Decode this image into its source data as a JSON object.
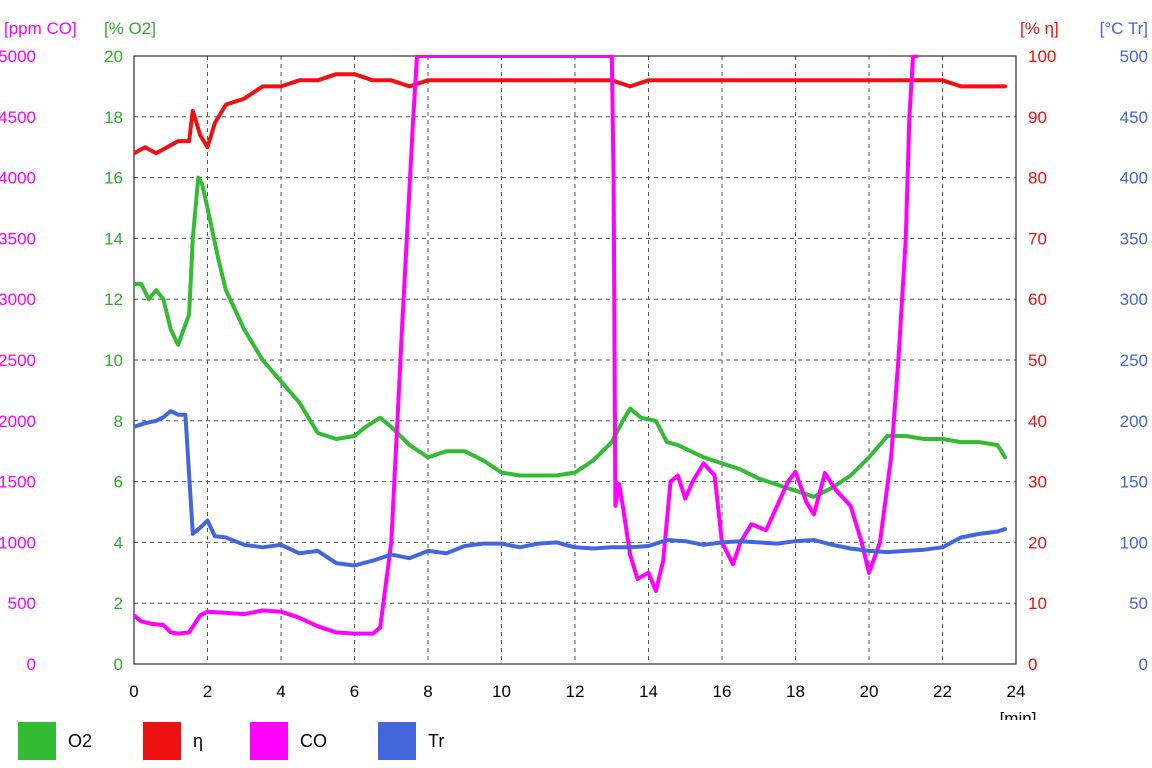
{
  "chart_data": {
    "type": "line",
    "xlabel": "[min]",
    "x_ticks": [
      "0",
      "2",
      "4",
      "6",
      "8",
      "10",
      "12",
      "14",
      "16",
      "18",
      "20",
      "22",
      "24"
    ],
    "xlim": [
      0,
      24
    ],
    "grid": true,
    "legend_position": "bottom",
    "axes": [
      {
        "key": "co",
        "label": "[ppm CO]",
        "side": "left",
        "range": [
          0,
          5000
        ],
        "ticks": [
          "0",
          "500",
          "1000",
          "1500",
          "2000",
          "2500",
          "3000",
          "3500",
          "4000",
          "4500",
          "5000"
        ],
        "color": "#ff00ff"
      },
      {
        "key": "o2",
        "label": "[% O2]",
        "side": "left",
        "range": [
          0,
          20
        ],
        "ticks": [
          "0",
          "2",
          "4",
          "6",
          "8",
          "10",
          "12",
          "14",
          "16",
          "18",
          "20"
        ],
        "color": "#33aa33"
      },
      {
        "key": "eta",
        "label": "[% η]",
        "side": "right",
        "range": [
          0,
          100
        ],
        "ticks": [
          "0",
          "10",
          "20",
          "30",
          "40",
          "50",
          "60",
          "70",
          "80",
          "90",
          "100"
        ],
        "color": "#ee1111"
      },
      {
        "key": "tr",
        "label": "[°C Tr]",
        "side": "right",
        "range": [
          0,
          500
        ],
        "ticks": [
          "0",
          "50",
          "100",
          "150",
          "200",
          "250",
          "300",
          "350",
          "400",
          "450",
          "500"
        ],
        "color": "#4466dd"
      }
    ],
    "series": [
      {
        "name": "O2",
        "axis": "o2",
        "color": "#33bb33",
        "x": [
          0,
          0.2,
          0.4,
          0.6,
          0.8,
          1.0,
          1.2,
          1.5,
          1.6,
          1.75,
          1.85,
          2.0,
          2.3,
          2.5,
          3.0,
          3.5,
          4.0,
          4.5,
          5.0,
          5.5,
          6.0,
          6.3,
          6.7,
          7.0,
          7.5,
          8.0,
          8.5,
          9.0,
          9.5,
          10.0,
          10.5,
          11.0,
          11.5,
          12.0,
          12.5,
          13.0,
          13.3,
          13.5,
          13.8,
          14.2,
          14.5,
          14.8,
          15.5,
          16.0,
          16.5,
          17.0,
          17.5,
          18.0,
          18.5,
          19.0,
          19.5,
          20.0,
          20.5,
          21.0,
          21.5,
          22.0,
          22.5,
          23.0,
          23.5,
          23.7
        ],
        "values": [
          12.5,
          12.5,
          12.0,
          12.3,
          12.0,
          11.0,
          10.5,
          11.5,
          14.0,
          16.0,
          15.8,
          15.0,
          13.3,
          12.3,
          11.0,
          10.0,
          9.3,
          8.6,
          7.6,
          7.4,
          7.5,
          7.8,
          8.1,
          7.8,
          7.2,
          6.8,
          7.0,
          7.0,
          6.7,
          6.3,
          6.2,
          6.2,
          6.2,
          6.3,
          6.7,
          7.3,
          8.0,
          8.4,
          8.1,
          8.0,
          7.3,
          7.2,
          6.8,
          6.6,
          6.4,
          6.1,
          5.9,
          5.7,
          5.5,
          5.8,
          6.2,
          6.8,
          7.5,
          7.5,
          7.4,
          7.4,
          7.3,
          7.3,
          7.2,
          6.8
        ]
      },
      {
        "name": "η",
        "axis": "eta",
        "color": "#ee1111",
        "x": [
          0,
          0.3,
          0.6,
          0.9,
          1.2,
          1.5,
          1.6,
          1.8,
          2.0,
          2.2,
          2.5,
          3.0,
          3.5,
          4.0,
          4.5,
          5.0,
          5.5,
          6.0,
          6.5,
          7.0,
          7.5,
          8.0,
          9.0,
          10.0,
          11.0,
          12.0,
          13.0,
          13.5,
          14.0,
          15.0,
          16.0,
          17.0,
          18.0,
          19.0,
          20.0,
          21.0,
          22.0,
          22.5,
          23.0,
          23.5,
          23.7
        ],
        "values": [
          84,
          85,
          84,
          85,
          86,
          86,
          91,
          87,
          85,
          89,
          92,
          93,
          95,
          95,
          96,
          96,
          97,
          97,
          96,
          96,
          95,
          96,
          96,
          96,
          96,
          96,
          96,
          95,
          96,
          96,
          96,
          96,
          96,
          96,
          96,
          96,
          96,
          95,
          95,
          95,
          95
        ]
      },
      {
        "name": "CO",
        "axis": "co",
        "color": "#ff00ff",
        "x": [
          0,
          0.2,
          0.5,
          0.8,
          1.0,
          1.2,
          1.5,
          1.8,
          2.0,
          2.5,
          3.0,
          3.5,
          4.0,
          4.5,
          5.0,
          5.5,
          6.0,
          6.5,
          6.7,
          7.0,
          7.3,
          7.6,
          7.7,
          7.8,
          13.0,
          13.05,
          13.1,
          13.2,
          13.3,
          13.5,
          13.7,
          14.0,
          14.2,
          14.4,
          14.6,
          14.8,
          15.0,
          15.2,
          15.5,
          15.8,
          16.0,
          16.3,
          16.5,
          16.8,
          17.2,
          17.5,
          17.8,
          18.0,
          18.3,
          18.5,
          18.8,
          19.1,
          19.5,
          19.8,
          20.0,
          20.3,
          20.6,
          20.8,
          21.0,
          21.1,
          21.2,
          21.3
        ],
        "values": [
          400,
          350,
          330,
          320,
          260,
          250,
          260,
          400,
          430,
          420,
          410,
          440,
          430,
          380,
          310,
          260,
          250,
          250,
          300,
          1000,
          2800,
          4500,
          5000,
          5000,
          5000,
          4000,
          1300,
          1480,
          1300,
          900,
          700,
          750,
          600,
          850,
          1500,
          1550,
          1360,
          1500,
          1650,
          1550,
          1000,
          820,
          1000,
          1150,
          1100,
          1300,
          1500,
          1580,
          1330,
          1230,
          1570,
          1430,
          1300,
          1000,
          750,
          1000,
          1700,
          2500,
          3500,
          4500,
          5000,
          5000
        ]
      },
      {
        "name": "Tr",
        "axis": "tr",
        "color": "#4466dd",
        "x": [
          0,
          0.3,
          0.6,
          0.8,
          1.0,
          1.2,
          1.4,
          1.6,
          1.8,
          2.0,
          2.2,
          2.5,
          3.0,
          3.5,
          4.0,
          4.5,
          5.0,
          5.5,
          6.0,
          6.5,
          7.0,
          7.5,
          8.0,
          8.5,
          9.0,
          9.5,
          10.0,
          10.5,
          11.0,
          11.5,
          12.0,
          12.5,
          13.0,
          13.5,
          14.0,
          14.5,
          15.0,
          15.5,
          16.0,
          16.5,
          17.0,
          17.5,
          18.0,
          18.5,
          19.0,
          19.5,
          20.0,
          20.5,
          21.0,
          21.5,
          22.0,
          22.5,
          23.0,
          23.5,
          23.7
        ],
        "values": [
          195,
          198,
          200,
          203,
          208,
          205,
          205,
          107,
          112,
          118,
          105,
          104,
          98,
          96,
          98,
          91,
          93,
          83,
          81,
          85,
          90,
          87,
          93,
          91,
          97,
          99,
          99,
          96,
          99,
          100,
          96,
          95,
          96,
          96,
          97,
          102,
          101,
          98,
          100,
          101,
          100,
          99,
          101,
          102,
          98,
          95,
          93,
          92,
          93,
          94,
          96,
          104,
          107,
          109,
          111
        ]
      }
    ]
  },
  "legend": [
    {
      "name": "O2",
      "color": "#33bb33"
    },
    {
      "name": "η",
      "color": "#ee1111"
    },
    {
      "name": "CO",
      "color": "#ff00ff"
    },
    {
      "name": "Tr",
      "color": "#4466dd"
    }
  ]
}
